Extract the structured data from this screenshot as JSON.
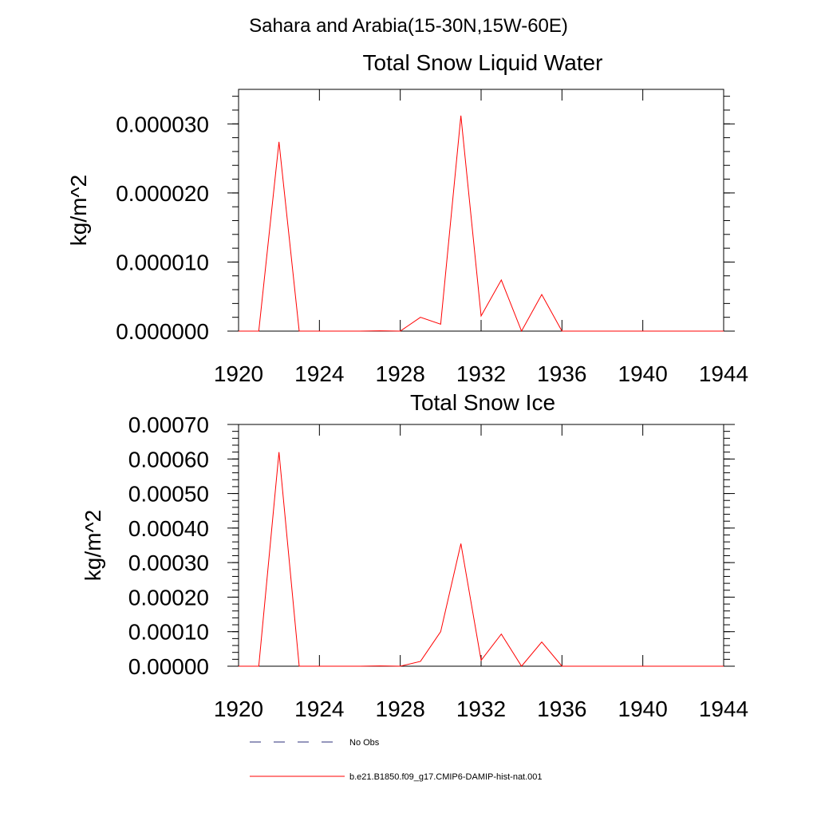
{
  "figure": {
    "title": "Sahara and Arabia(15-30N,15W-60E)"
  },
  "legend": {
    "items": [
      {
        "label": "No Obs",
        "color": "#2b2f7a",
        "style": "dashed"
      },
      {
        "label": "b.e21.B1850.f09_g17.CMIP6-DAMIP-hist-nat.001",
        "color": "#ff0000",
        "style": "solid"
      }
    ]
  },
  "chart_data": [
    {
      "type": "line",
      "title": "Total Snow Liquid Water",
      "xlabel": "",
      "ylabel": "kg/m^2",
      "xlim": [
        1920,
        1944
      ],
      "ylim": [
        0,
        3.5e-05
      ],
      "xticks": [
        1920,
        1924,
        1928,
        1932,
        1936,
        1940,
        1944
      ],
      "xtick_labels": [
        "1920",
        "1924",
        "1928",
        "1932",
        "1936",
        "1940",
        "1944"
      ],
      "yticks": [
        0,
        1e-05,
        2e-05,
        3e-05
      ],
      "ytick_labels": [
        "0.000000",
        "0.000010",
        "0.000020",
        "0.000030"
      ],
      "series": [
        {
          "color": "#ff0000",
          "x": [
            1920,
            1921,
            1922,
            1923,
            1924,
            1925,
            1926,
            1927,
            1928,
            1929,
            1930,
            1931,
            1932,
            1933,
            1934,
            1935,
            1936,
            1937,
            1938,
            1939,
            1940,
            1941,
            1942,
            1943,
            1944
          ],
          "y": [
            0,
            0,
            2.74e-05,
            0,
            0,
            0,
            0,
            5e-08,
            0,
            2e-06,
            1e-06,
            3.12e-05,
            2.2e-06,
            7.4e-06,
            0,
            5.3e-06,
            0,
            0,
            0,
            0,
            0,
            0,
            0,
            0,
            0
          ]
        }
      ]
    },
    {
      "type": "line",
      "title": "Total Snow Ice",
      "xlabel": "",
      "ylabel": "kg/m^2",
      "xlim": [
        1920,
        1944
      ],
      "ylim": [
        0,
        0.0007
      ],
      "xticks": [
        1920,
        1924,
        1928,
        1932,
        1936,
        1940,
        1944
      ],
      "xtick_labels": [
        "1920",
        "1924",
        "1928",
        "1932",
        "1936",
        "1940",
        "1944"
      ],
      "yticks": [
        0,
        0.0001,
        0.0002,
        0.0003,
        0.0004,
        0.0005,
        0.0006,
        0.0007
      ],
      "ytick_labels": [
        "0.00000",
        "0.00010",
        "0.00020",
        "0.00030",
        "0.00040",
        "0.00050",
        "0.00060",
        "0.00070"
      ],
      "series": [
        {
          "color": "#ff0000",
          "x": [
            1920,
            1921,
            1922,
            1923,
            1924,
            1925,
            1926,
            1927,
            1928,
            1929,
            1930,
            1931,
            1932,
            1933,
            1934,
            1935,
            1936,
            1937,
            1938,
            1939,
            1940,
            1941,
            1942,
            1943,
            1944
          ],
          "y": [
            0,
            0,
            0.00062,
            0,
            0,
            0,
            0,
            1e-06,
            0,
            1.4e-05,
            0.0001,
            0.000355,
            1.7e-05,
            9.3e-05,
            0,
            7e-05,
            0,
            0,
            0,
            0,
            0,
            0,
            0,
            0,
            0
          ]
        }
      ]
    }
  ]
}
